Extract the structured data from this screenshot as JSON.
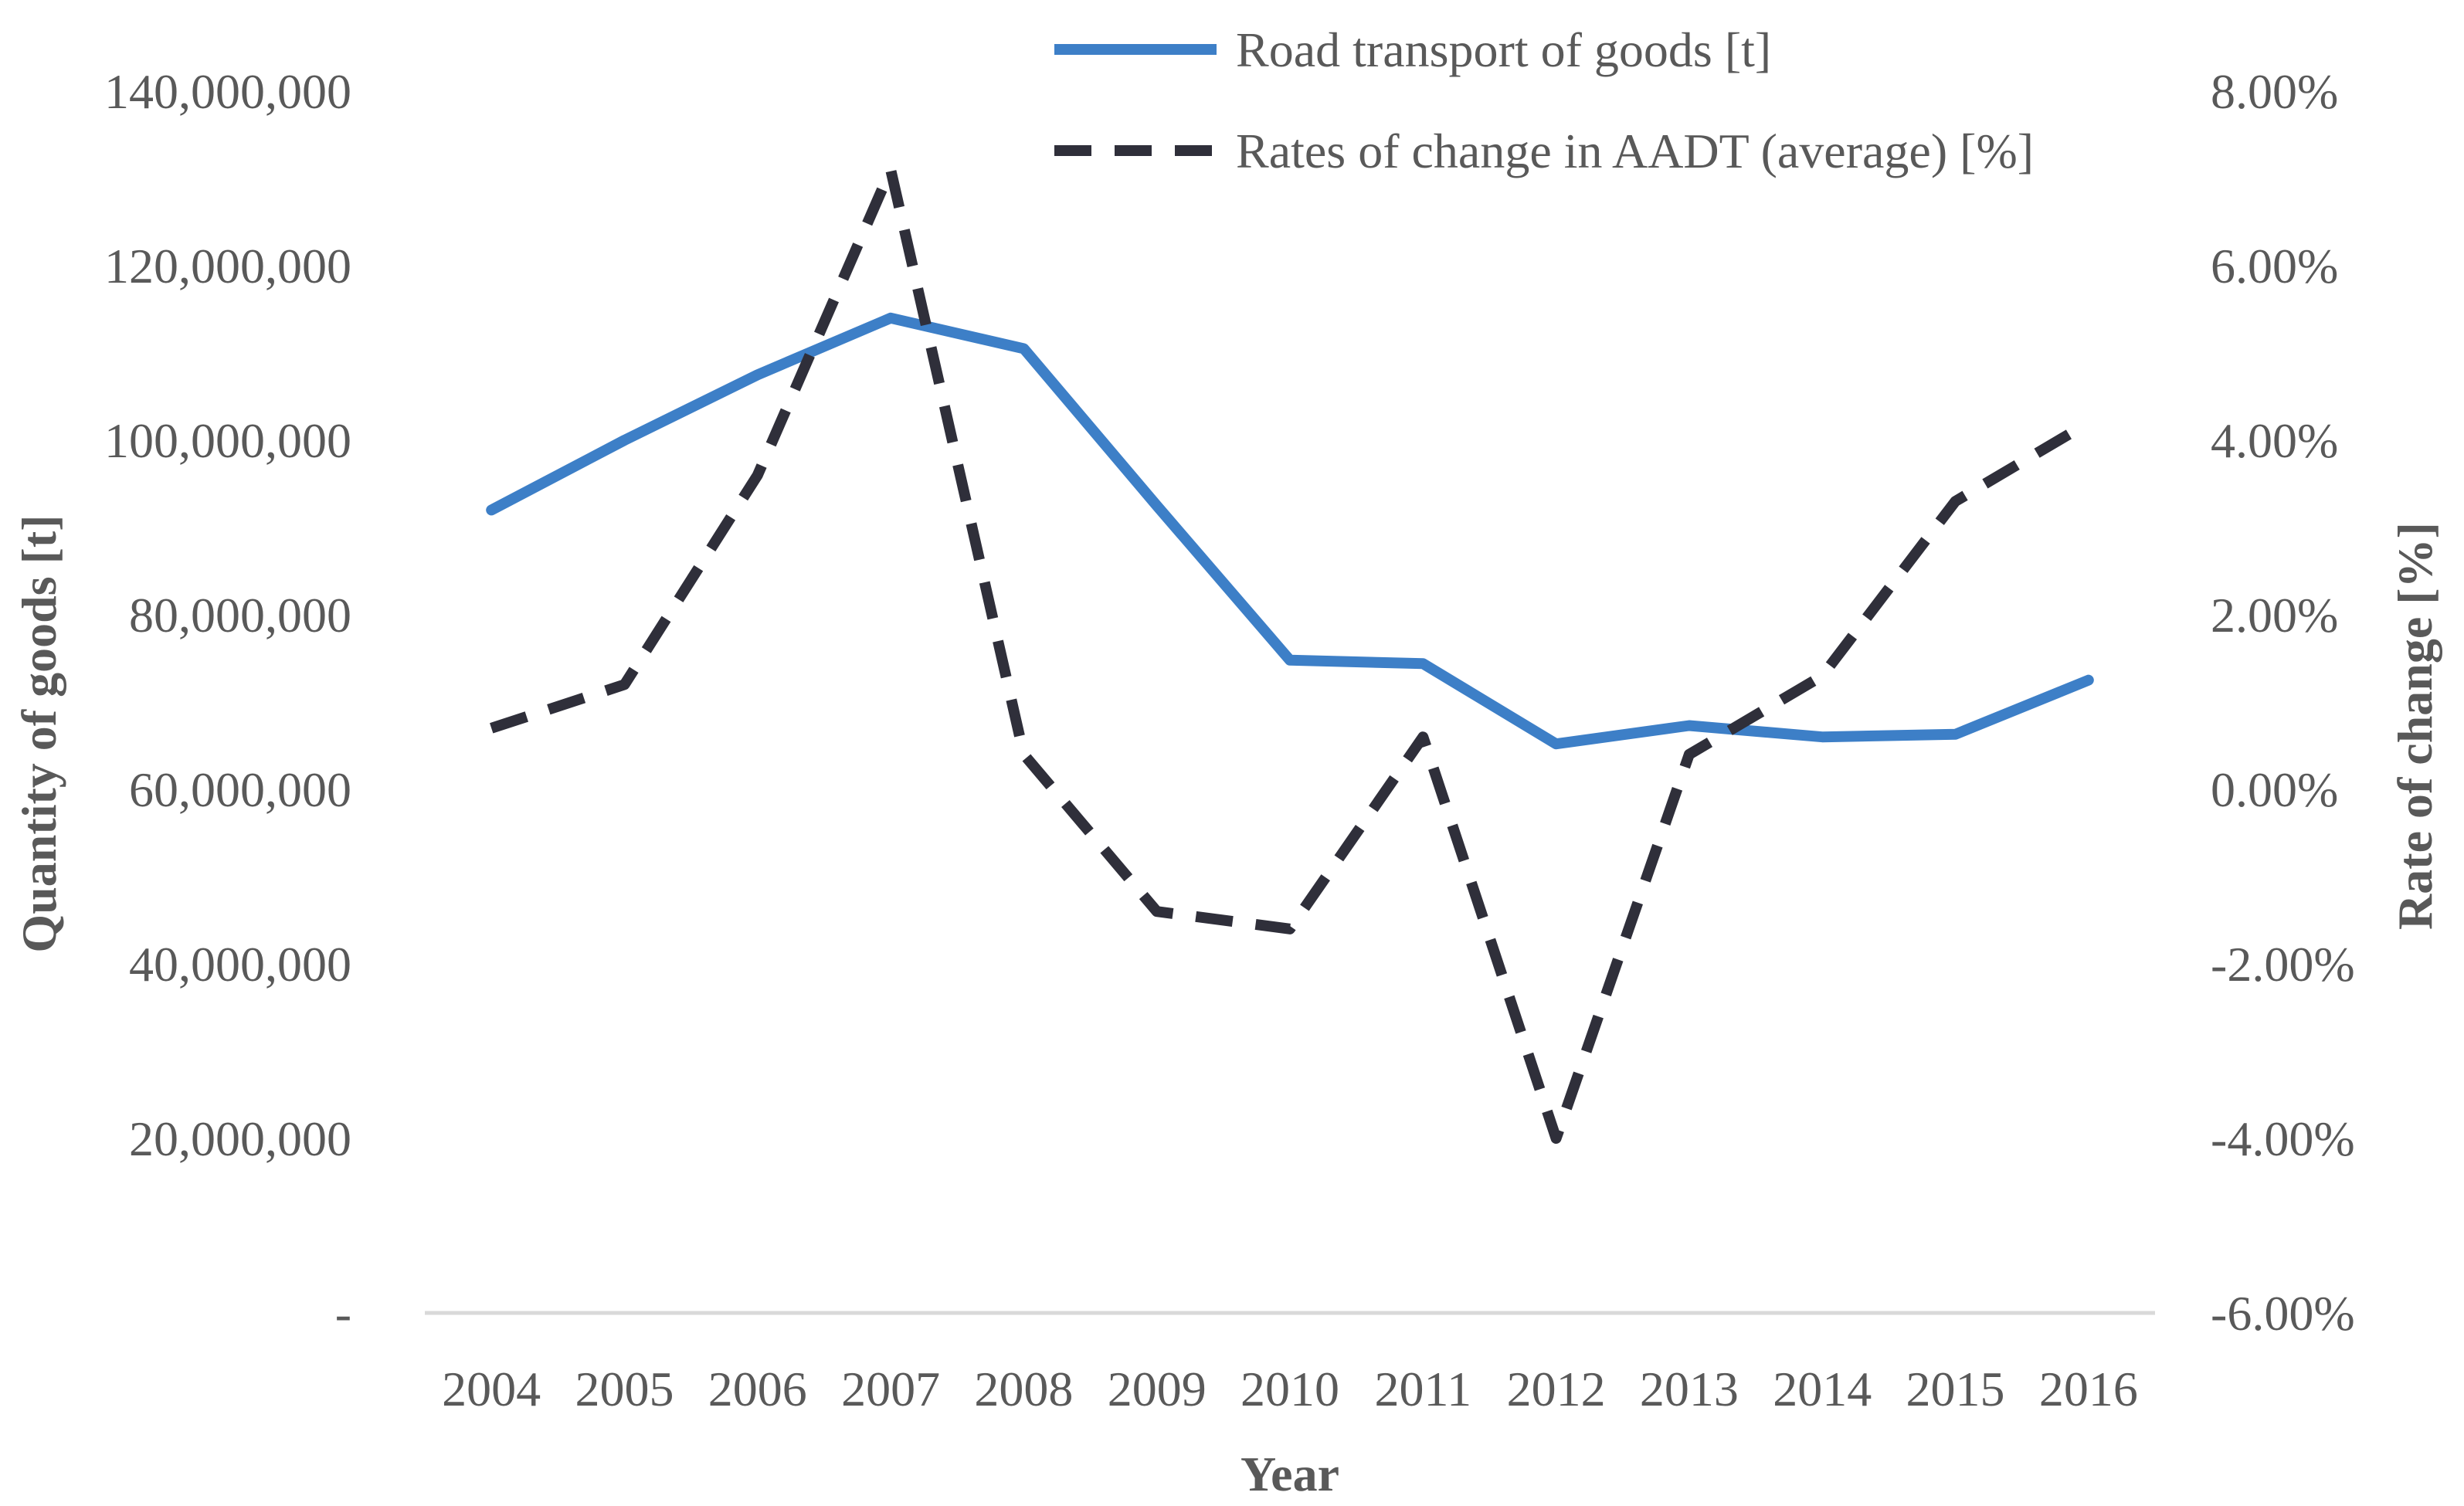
{
  "chart_data": {
    "type": "line",
    "title": "",
    "categories": [
      "2004",
      "2005",
      "2006",
      "2007",
      "2008",
      "2009",
      "2010",
      "2011",
      "2012",
      "2013",
      "2014",
      "2015",
      "2016"
    ],
    "xlabel": "Year",
    "ylabel_left": "Quantity of goods [t]",
    "ylabel_right": "Rate of change [%]",
    "left_axis": {
      "ylim": [
        0,
        140000000
      ],
      "ticks": [
        0,
        20000000,
        40000000,
        60000000,
        80000000,
        100000000,
        120000000,
        140000000
      ],
      "tick_labels": [
        "-",
        "20,000,000",
        "40,000,000",
        "60,000,000",
        "80,000,000",
        "100,000,000",
        "120,000,000",
        "140,000,000"
      ]
    },
    "right_axis": {
      "ylim": [
        -6,
        8
      ],
      "ticks": [
        -6,
        -4,
        -2,
        0,
        2,
        4,
        6,
        8
      ],
      "tick_labels": [
        "-6.00%",
        "-4.00%",
        "-2.00%",
        "0.00%",
        "2.00%",
        "4.00%",
        "6.00%",
        "8.00%"
      ]
    },
    "series": [
      {
        "name": "Road transport of goods [t]",
        "axis": "left",
        "style": "solid",
        "color": "#3d7fc7",
        "values": [
          92000000,
          100000000,
          107500000,
          114000000,
          110500000,
          92500000,
          74800000,
          74400000,
          65200000,
          67300000,
          66000000,
          66300000,
          72500000
        ]
      },
      {
        "name": "Rates of change in AADT (average) [%]",
        "axis": "right",
        "style": "dashed",
        "color": "#2f2f3a",
        "values": [
          0.7,
          1.2,
          3.6,
          7.1,
          0.4,
          -1.4,
          -1.6,
          0.6,
          -4.0,
          0.4,
          1.3,
          3.3,
          4.2
        ]
      }
    ],
    "legend_position": "top-right",
    "grid": false
  }
}
